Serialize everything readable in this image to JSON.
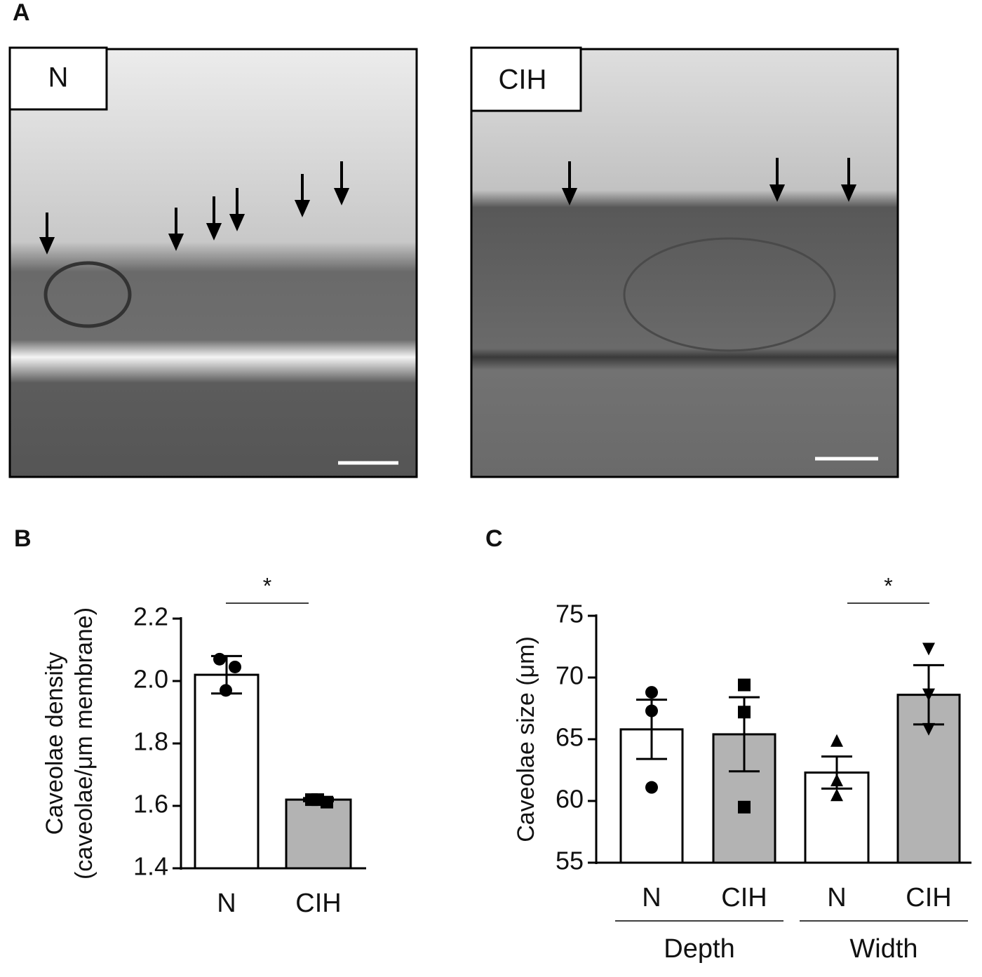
{
  "figure_a": {
    "letter": "A",
    "images": [
      {
        "label": "N"
      },
      {
        "label": "CIH"
      }
    ]
  },
  "chart_data": [
    {
      "type": "bar",
      "panel": "B",
      "ylabel": [
        "Caveolae density",
        "(caveolae/μm membrane)"
      ],
      "categories": [
        "N",
        "CIH"
      ],
      "values": [
        2.02,
        1.62
      ],
      "errors": [
        0.06,
        0.005
      ],
      "points": [
        [
          2.07,
          2.045,
          1.97
        ],
        [
          1.62,
          1.612,
          1.62
        ]
      ],
      "colors": [
        "#ffffff",
        "#b3b3b3"
      ],
      "markers": [
        "circle",
        "square"
      ],
      "ylim": [
        1.4,
        2.2
      ],
      "yticks": [
        1.4,
        1.6,
        1.8,
        {
          "value": 2,
          "label": "2.0"
        },
        2.2
      ],
      "significance": "*"
    },
    {
      "type": "bar",
      "panel": "C",
      "ylabel": [
        "Caveolae size (μm)"
      ],
      "categories": [
        "N",
        "CIH",
        "N",
        "CIH"
      ],
      "groups": [
        "Depth",
        "Width"
      ],
      "values": [
        65.8,
        65.4,
        62.3,
        68.6
      ],
      "errors": [
        2.4,
        3.0,
        1.3,
        2.4
      ],
      "points": [
        [
          68.8,
          67.3,
          61.1
        ],
        [
          69.4,
          67.2,
          59.5
        ],
        [
          64.9,
          61.7,
          60.5
        ],
        [
          72.3,
          68.6,
          65.8
        ]
      ],
      "colors": [
        "#ffffff",
        "#b3b3b3",
        "#ffffff",
        "#b3b3b3"
      ],
      "markers": [
        "circle",
        "square",
        "triangle",
        "triangle-down"
      ],
      "ylim": [
        55,
        75
      ],
      "yticks": [
        55,
        60,
        65,
        70,
        75
      ],
      "significance": "*"
    }
  ]
}
